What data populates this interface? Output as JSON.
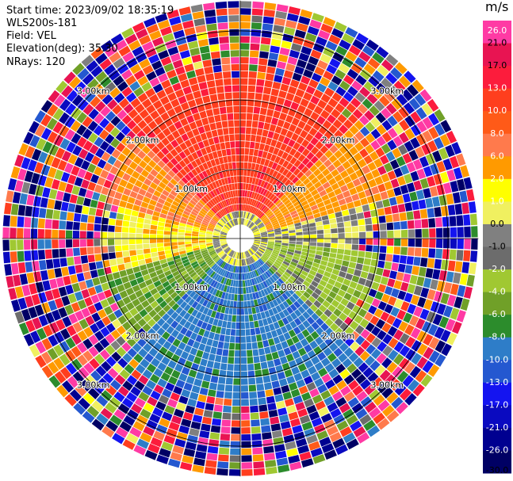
{
  "info": {
    "start_time": "Start time: 2023/09/02 18:35:19",
    "instrument": "WLS200s-181",
    "field": "Field: VEL",
    "elevation": "Elevation(deg): 35.30",
    "nrays": "NRays: 120"
  },
  "colorbar": {
    "unit": "m/s",
    "ticks": [
      "26.0",
      "21.0",
      "17.0",
      "13.0",
      "10.0",
      "8.0",
      "6.0",
      "2.0",
      "1.0",
      "0.0",
      "-1.0",
      "-2.0",
      "-4.0",
      "-6.0",
      "-8.0",
      "-10.0",
      "-13.0",
      "-17.0",
      "-21.0",
      "-26.0",
      "-30.0"
    ],
    "colors": [
      "#ff3aa4",
      "#e81452",
      "#fc1c3c",
      "#ff3e1e",
      "#ff5a18",
      "#ff7a4c",
      "#ff9a00",
      "#ffff00",
      "#f0f060",
      "#808080",
      "#6c6c6c",
      "#a0c832",
      "#70a028",
      "#2c8c2c",
      "#2e7dc8",
      "#2458d0",
      "#1414f0",
      "#0a0ac0",
      "#000090",
      "#000064"
    ],
    "text_colors": [
      "#ffffff",
      "#000000",
      "#000000",
      "#ffffff",
      "#ffffff",
      "#ffffff",
      "#ffffff",
      "#ffffff",
      "#ffffff",
      "#000000",
      "#000000",
      "#ffffff",
      "#ffffff",
      "#ffffff",
      "#ffffff",
      "#ffffff",
      "#ffffff",
      "#ffffff",
      "#ffffff",
      "#ffffff",
      "#000000"
    ]
  },
  "chart_data": {
    "type": "heatmap",
    "projection": "polar PPI",
    "field": "VEL",
    "units": "m/s",
    "nrays": 120,
    "elevation_deg": 35.3,
    "vmin": -30.0,
    "vmax": 26.0,
    "range_rings_km": [
      1.0,
      2.0,
      3.0
    ],
    "ring_labels": [
      "1.00km",
      "2.00km",
      "3.00km"
    ],
    "max_range_km": 3.3,
    "sectors": [
      {
        "azimuth_deg": [
          315,
          45
        ],
        "range_km": [
          0.4,
          2.4
        ],
        "velocity_ms": 12.0,
        "description": "north, orange-red"
      },
      {
        "azimuth_deg": [
          45,
          75
        ],
        "range_km": [
          0.4,
          2.2
        ],
        "velocity_ms": 5.0,
        "description": "northeast, orange-yellow"
      },
      {
        "azimuth_deg": [
          75,
          95
        ],
        "range_km": [
          0.4,
          1.8
        ],
        "velocity_ms": 0.0,
        "description": "east, grey"
      },
      {
        "azimuth_deg": [
          95,
          135
        ],
        "range_km": [
          0.4,
          2.0
        ],
        "velocity_ms": -3.0,
        "description": "southeast, olive green"
      },
      {
        "azimuth_deg": [
          135,
          225
        ],
        "range_km": [
          0.4,
          2.3
        ],
        "velocity_ms": -9.0,
        "description": "south, blue"
      },
      {
        "azimuth_deg": [
          225,
          255
        ],
        "range_km": [
          0.4,
          2.0
        ],
        "velocity_ms": -5.0,
        "description": "southwest, green"
      },
      {
        "azimuth_deg": [
          255,
          285
        ],
        "range_km": [
          0.4,
          1.8
        ],
        "velocity_ms": 1.5,
        "description": "west, yellow"
      },
      {
        "azimuth_deg": [
          285,
          315
        ],
        "range_km": [
          0.4,
          2.1
        ],
        "velocity_ms": 6.0,
        "description": "northwest, orange"
      }
    ],
    "outer_region": "noisy velocities across the full colour scale beyond ~2.2 km"
  }
}
